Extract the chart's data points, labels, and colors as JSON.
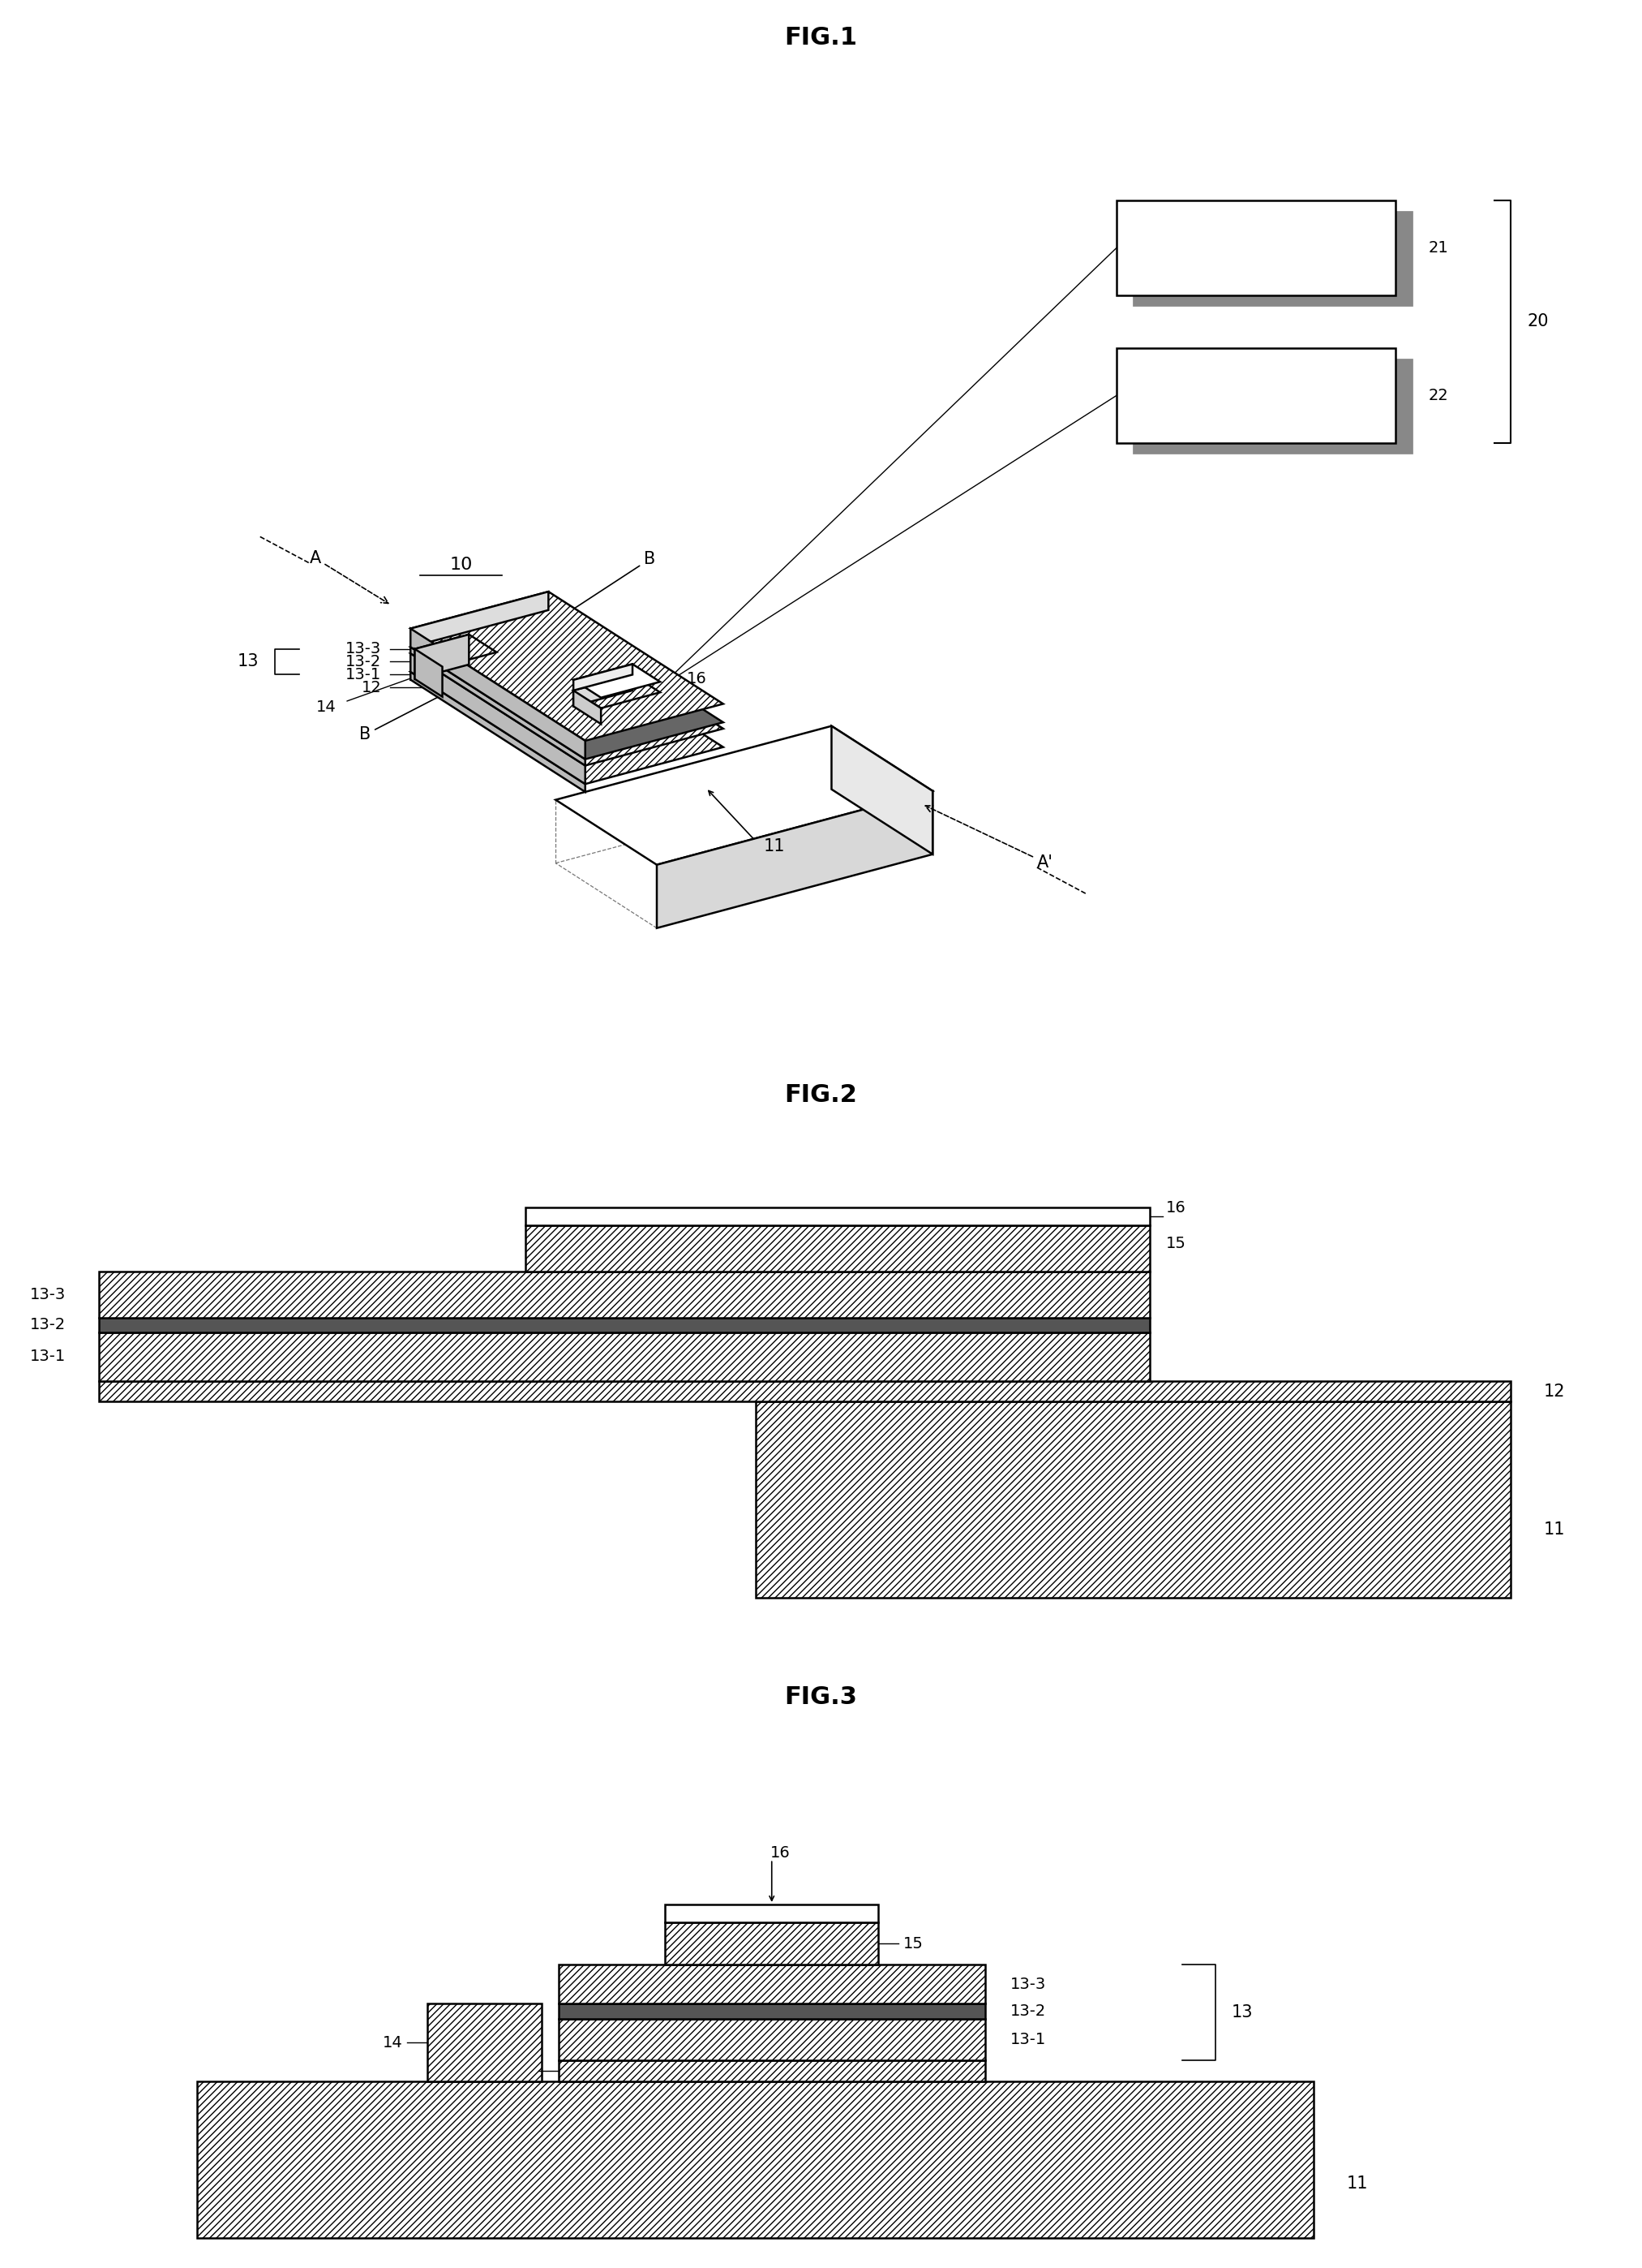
{
  "bg_color": "#ffffff",
  "line_color": "#000000",
  "fig1_title": "FIG.1",
  "fig2_title": "FIG.2",
  "fig3_title": "FIG.3",
  "title_fontsize": 22,
  "label_fontsize": 15,
  "lw": 1.8
}
